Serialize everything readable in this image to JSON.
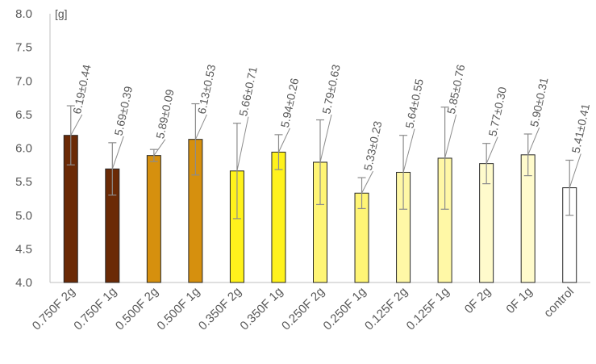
{
  "chart_data": {
    "type": "bar",
    "unit_label": "[g]",
    "title": "",
    "xlabel": "",
    "ylabel": "",
    "ylim": [
      4.0,
      8.0
    ],
    "yticks": [
      "4.0",
      "4.5",
      "5.0",
      "5.5",
      "6.0",
      "6.5",
      "7.0",
      "7.5",
      "8.0"
    ],
    "grid": false,
    "legend": "none",
    "categories": [
      "0.750F 2g",
      "0.750F 1g",
      "0.500F 2g",
      "0.500F 1g",
      "0.350F 2g",
      "0.350F 1g",
      "0.250F 2g",
      "0.250F 1g",
      "0.125F 2g",
      "0.125F 1g",
      "0F 2g",
      "0F 1g",
      "control"
    ],
    "values": [
      6.19,
      5.69,
      5.89,
      6.13,
      5.66,
      5.94,
      5.79,
      5.33,
      5.64,
      5.85,
      5.77,
      5.9,
      5.41
    ],
    "errors": [
      0.44,
      0.39,
      0.09,
      0.53,
      0.71,
      0.26,
      0.63,
      0.23,
      0.55,
      0.76,
      0.3,
      0.31,
      0.41
    ],
    "data_labels": [
      "6.19±0.44",
      "5.69±0.39",
      "5.89±0.09",
      "6.13±0.53",
      "5.66±0.71",
      "5.94±0.26",
      "5.79±0.63",
      "5.33±0.23",
      "5.64±0.55",
      "5.85±0.76",
      "5.77±0.30",
      "5.90±0.31",
      "5.41±0.41"
    ],
    "colors": [
      "#6b2a06",
      "#6b2a06",
      "#d6900e",
      "#d6900e",
      "#fff21c",
      "#fff21c",
      "#fff575",
      "#fff575",
      "#fff8a6",
      "#fff8a6",
      "#fffbcc",
      "#fffbcc",
      "#ffffff"
    ],
    "bar_stroke": "#262626",
    "error_color": "#8c8c8c"
  }
}
